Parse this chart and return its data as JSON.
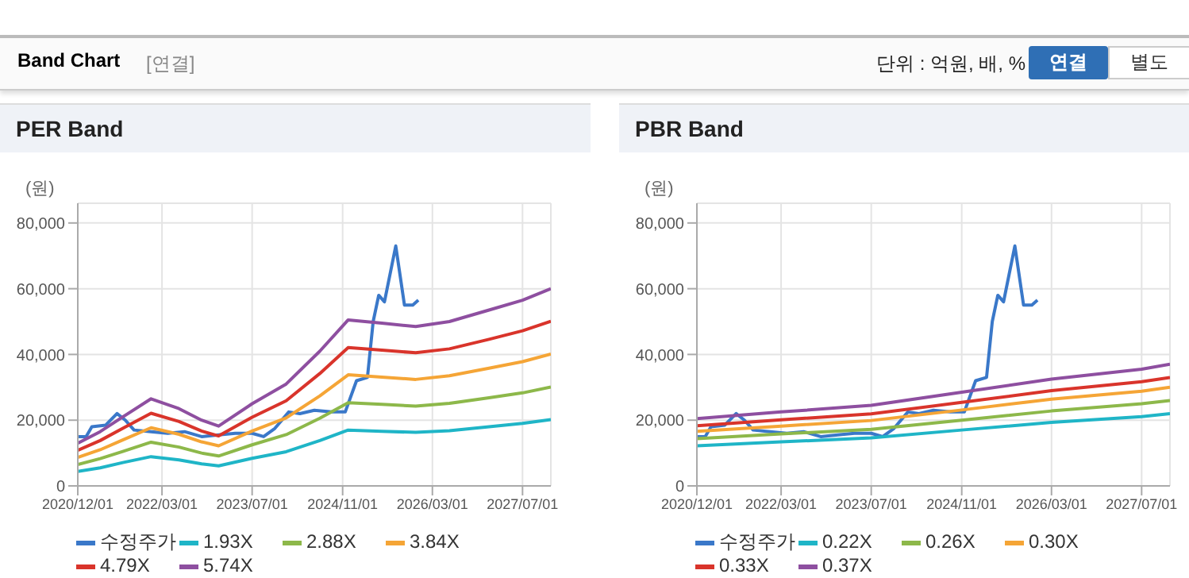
{
  "chart_data": [
    {
      "type": "line",
      "title": "PER Band",
      "ylabel": "(원)",
      "annotations": [
        "Band Chart",
        "[연결]",
        "단위 : 억원, 배, %",
        "연결",
        "별도"
      ],
      "x": [
        "2020-12-01",
        "2021-04-01",
        "2021-08-01",
        "2022-01-01",
        "2022-06-01",
        "2022-10-01",
        "2023-01-01",
        "2023-07-01",
        "2024-01-01",
        "2024-07-01",
        "2024-12-01",
        "2025-06-01",
        "2025-12-01",
        "2026-06-01",
        "2027-01-01",
        "2027-07-01",
        "2027-12-01"
      ],
      "series": [
        {
          "name": "수정주가",
          "color": "#3a78c9",
          "x": [
            "2020-12-01",
            "2021-01-15",
            "2021-02-15",
            "2021-05-01",
            "2021-07-01",
            "2021-08-15",
            "2021-10-01",
            "2022-01-01",
            "2022-04-01",
            "2022-07-01",
            "2022-10-01",
            "2023-01-01",
            "2023-04-01",
            "2023-07-01",
            "2023-09-01",
            "2023-11-01",
            "2024-01-15",
            "2024-03-15",
            "2024-06-01",
            "2024-09-01",
            "2024-11-15",
            "2025-01-15",
            "2025-03-15",
            "2025-04-15",
            "2025-05-15",
            "2025-06-15",
            "2025-08-15",
            "2025-10-01",
            "2025-11-15",
            "2025-12-15"
          ],
          "values": [
            15000,
            15000,
            18000,
            18500,
            22000,
            20000,
            17000,
            16500,
            16000,
            16500,
            15000,
            15500,
            16000,
            16000,
            15000,
            17500,
            22500,
            22000,
            23000,
            22500,
            22500,
            32000,
            33000,
            50000,
            58000,
            56000,
            73000,
            55000,
            55000,
            56500
          ]
        },
        {
          "name": "1.93X",
          "color": "#1fb5c7",
          "values": [
            4400,
            5500,
            7100,
            8900,
            7900,
            6700,
            6100,
            8400,
            10400,
            13800,
            17000,
            16600,
            16300,
            16800,
            18000,
            19000,
            20200
          ]
        },
        {
          "name": "2.88X",
          "color": "#8db84a",
          "values": [
            6500,
            8300,
            10500,
            13300,
            11800,
            10000,
            9100,
            12500,
            15600,
            20600,
            25300,
            24800,
            24300,
            25100,
            26800,
            28300,
            30100
          ]
        },
        {
          "name": "3.84X",
          "color": "#f5a536",
          "values": [
            8700,
            11000,
            14000,
            17700,
            15700,
            13400,
            12200,
            16700,
            20700,
            27400,
            33800,
            33100,
            32400,
            33500,
            35800,
            37800,
            40100
          ]
        },
        {
          "name": "4.79X",
          "color": "#d9342b",
          "values": [
            10800,
            13800,
            17500,
            22100,
            19600,
            16700,
            15200,
            20900,
            25900,
            34200,
            42100,
            41300,
            40500,
            41700,
            44600,
            47200,
            50100
          ]
        },
        {
          "name": "5.74X",
          "color": "#8e4fa0",
          "values": [
            13000,
            16500,
            21000,
            26500,
            23500,
            20000,
            18200,
            25000,
            31000,
            41000,
            50500,
            49500,
            48500,
            50000,
            53500,
            56500,
            60000
          ]
        }
      ],
      "xlim": [
        "2020-12-01",
        "2027-12-01"
      ],
      "xticks": [
        {
          "value": "2020-12-01",
          "label": "2020/12/01"
        },
        {
          "value": "2022-03-01",
          "label": "2022/03/01"
        },
        {
          "value": "2023-07-01",
          "label": "2023/07/01"
        },
        {
          "value": "2024-11-01",
          "label": "2024/11/01"
        },
        {
          "value": "2026-03-01",
          "label": "2026/03/01"
        },
        {
          "value": "2027-07-01",
          "label": "2027/07/01"
        }
      ],
      "ylim": [
        0,
        86000
      ],
      "yticks": [
        {
          "value": 0,
          "label": "0"
        },
        {
          "value": 20000,
          "label": "20,000"
        },
        {
          "value": 40000,
          "label": "40,000"
        },
        {
          "value": 60000,
          "label": "60,000"
        },
        {
          "value": 80000,
          "label": "80,000"
        }
      ],
      "grid": true,
      "legend": "bottom",
      "marker": "none",
      "line_style": "solid"
    },
    {
      "type": "line",
      "title": "PBR Band",
      "ylabel": "(원)",
      "x": [
        "2020-12-01",
        "2022-03-01",
        "2023-07-01",
        "2024-11-01",
        "2026-03-01",
        "2027-07-01",
        "2027-12-01"
      ],
      "series": [
        {
          "name": "수정주가",
          "color": "#3a78c9",
          "x": [
            "2020-12-01",
            "2021-01-15",
            "2021-02-15",
            "2021-05-01",
            "2021-07-01",
            "2021-08-15",
            "2021-10-01",
            "2022-01-01",
            "2022-04-01",
            "2022-07-01",
            "2022-10-01",
            "2023-01-01",
            "2023-04-01",
            "2023-07-01",
            "2023-09-01",
            "2023-11-01",
            "2024-01-15",
            "2024-03-15",
            "2024-06-01",
            "2024-09-01",
            "2024-11-15",
            "2025-01-15",
            "2025-03-15",
            "2025-04-15",
            "2025-05-15",
            "2025-06-15",
            "2025-08-15",
            "2025-10-01",
            "2025-11-15",
            "2025-12-15"
          ],
          "values": [
            15000,
            15000,
            18000,
            18500,
            22000,
            20000,
            17000,
            16500,
            16000,
            16500,
            15000,
            15500,
            16000,
            16000,
            15000,
            17500,
            22500,
            22000,
            23000,
            22500,
            22500,
            32000,
            33000,
            50000,
            58000,
            56000,
            73000,
            55000,
            55000,
            56500
          ]
        },
        {
          "name": "0.22X",
          "color": "#1fb5c7",
          "values": [
            12200,
            13400,
            14600,
            17000,
            19300,
            21100,
            22000
          ]
        },
        {
          "name": "0.26X",
          "color": "#8db84a",
          "values": [
            14400,
            15800,
            17200,
            20000,
            22800,
            25000,
            26000
          ]
        },
        {
          "name": "0.30X",
          "color": "#f5a536",
          "values": [
            16600,
            18200,
            19900,
            23100,
            26400,
            28800,
            30000
          ]
        },
        {
          "name": "0.33X",
          "color": "#d9342b",
          "values": [
            18300,
            20100,
            21900,
            25400,
            29000,
            31700,
            33000
          ]
        },
        {
          "name": "0.37X",
          "color": "#8e4fa0",
          "values": [
            20500,
            22500,
            24500,
            28500,
            32500,
            35500,
            37000
          ]
        }
      ],
      "xlim": [
        "2020-12-01",
        "2027-12-01"
      ],
      "xticks": [
        {
          "value": "2020-12-01",
          "label": "2020/12/01"
        },
        {
          "value": "2022-03-01",
          "label": "2022/03/01"
        },
        {
          "value": "2023-07-01",
          "label": "2023/07/01"
        },
        {
          "value": "2024-11-01",
          "label": "2024/11/01"
        },
        {
          "value": "2026-03-01",
          "label": "2026/03/01"
        },
        {
          "value": "2027-07-01",
          "label": "2027/07/01"
        }
      ],
      "ylim": [
        0,
        86000
      ],
      "yticks": [
        {
          "value": 0,
          "label": "0"
        },
        {
          "value": 20000,
          "label": "20,000"
        },
        {
          "value": 40000,
          "label": "40,000"
        },
        {
          "value": 60000,
          "label": "60,000"
        },
        {
          "value": 80000,
          "label": "80,000"
        }
      ],
      "grid": true,
      "legend": "bottom",
      "marker": "none",
      "line_style": "solid"
    }
  ]
}
